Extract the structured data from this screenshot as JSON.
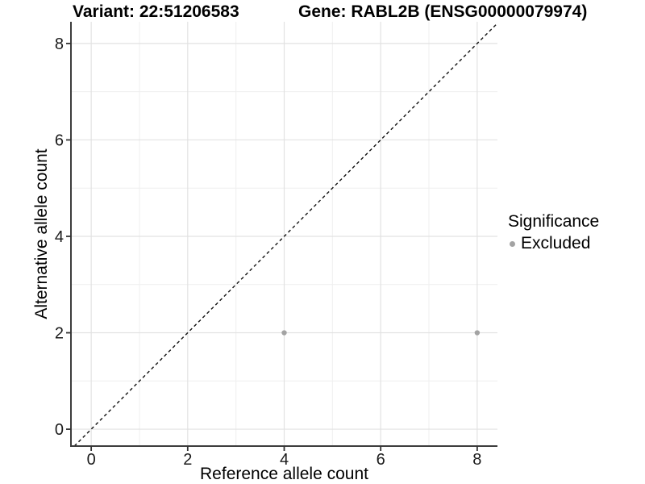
{
  "header": {
    "variant_title": "Variant: 22:51206583",
    "gene_title": "Gene: RABL2B (ENSG00000079974)"
  },
  "axes": {
    "x_title": "Reference allele count",
    "y_title": "Alternative allele count"
  },
  "legend": {
    "title": "Significance",
    "items": [
      {
        "label": "Excluded",
        "marker": "circle-icon",
        "color": "#a3a3a3"
      }
    ]
  },
  "chart_data": {
    "type": "scatter",
    "title": "Variant: 22:51206583 — Gene: RABL2B (ENSG00000079974)",
    "xlabel": "Reference allele count",
    "ylabel": "Alternative allele count",
    "x_ticks": [
      0,
      2,
      4,
      6,
      8
    ],
    "y_ticks": [
      0,
      2,
      4,
      6,
      8
    ],
    "minor_gridlines_x": [
      1,
      3,
      5,
      7
    ],
    "minor_gridlines_y": [
      1,
      3,
      5,
      7
    ],
    "xlim": [
      -0.42,
      8.42
    ],
    "ylim": [
      -0.35,
      8.45
    ],
    "grid": "on",
    "legend_position": "right",
    "series": [
      {
        "name": "Excluded",
        "marker": "circle",
        "color": "#a3a3a3",
        "points": [
          {
            "x": 4,
            "y": 2
          },
          {
            "x": 8,
            "y": 2
          }
        ]
      }
    ],
    "reference_line": {
      "kind": "identity_y_equals_x",
      "style": "dashed",
      "color": "#111111"
    },
    "colors": {
      "background": "#ffffff",
      "grid_major": "#e2e2e2",
      "grid_minor": "#efefef",
      "axis_line": "#3d3d3d",
      "tick_mark": "#333333",
      "tick_label": "#1a1a1a",
      "point": "#a3a3a3",
      "dashed_line": "#111111"
    }
  }
}
